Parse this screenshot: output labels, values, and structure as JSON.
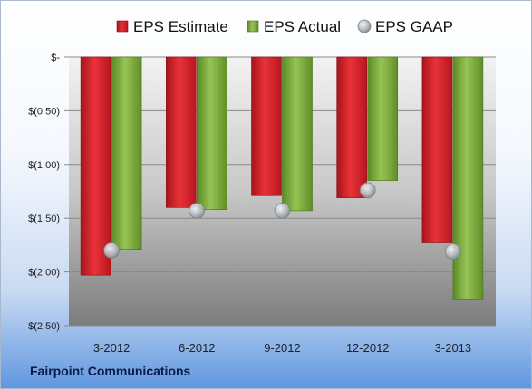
{
  "company": "Fairpoint Communications",
  "chart_data": {
    "type": "bar",
    "categories": [
      "3-2012",
      "6-2012",
      "9-2012",
      "12-2012",
      "3-2013"
    ],
    "series": [
      {
        "name": "EPS Estimate",
        "type": "bar",
        "color": "#d8202a",
        "values": [
          -2.03,
          -1.4,
          -1.29,
          -1.31,
          -1.73
        ]
      },
      {
        "name": "EPS Actual",
        "type": "bar",
        "color": "#7aab3a",
        "values": [
          -1.79,
          -1.42,
          -1.43,
          -1.15,
          -2.26
        ]
      },
      {
        "name": "EPS GAAP",
        "type": "marker",
        "color": "#b4b8bc",
        "values": [
          -1.8,
          -1.43,
          -1.43,
          -1.24,
          -1.81
        ]
      }
    ],
    "yticks": [
      "$-",
      "$(0.50)",
      "$(1.00)",
      "$(1.50)",
      "$(2.00)",
      "$(2.50)"
    ],
    "ylim": [
      -2.5,
      0
    ],
    "legend_position": "top",
    "grid": true
  }
}
